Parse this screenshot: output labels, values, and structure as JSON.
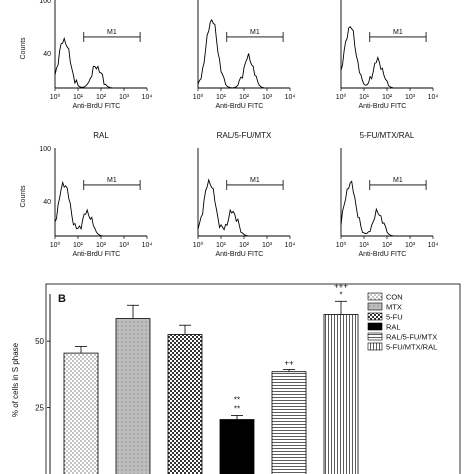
{
  "chart_data": [
    {
      "type": "histogram",
      "panel": "A",
      "title": "",
      "xlabel": "Anti-BrdU FITC",
      "ylabel": "Counts",
      "x_scale": "log",
      "x_ticks": [
        "10⁰",
        "10¹",
        "10²",
        "10³",
        "10⁴"
      ],
      "y_ticks": [
        "100",
        "40"
      ],
      "marker": "M1",
      "histograms": [
        {
          "title": "",
          "peak_x": 0.4,
          "shoulder_x": 1.8,
          "peak_height": 0.55
        },
        {
          "title": "",
          "peak_x": 0.6,
          "shoulder_x": 2.2,
          "peak_height": 0.78
        },
        {
          "title": "",
          "peak_x": 0.4,
          "shoulder_x": 1.6,
          "peak_height": 0.7
        },
        {
          "title": "RAL",
          "peak_x": 0.4,
          "shoulder_x": 1.4,
          "peak_height": 0.6
        },
        {
          "title": "RAL/5-FU/MTX",
          "peak_x": 0.5,
          "shoulder_x": 1.5,
          "peak_height": 0.62
        },
        {
          "title": "5-FU/MTX/RAL",
          "peak_x": 0.4,
          "shoulder_x": 1.6,
          "peak_height": 0.6
        }
      ]
    },
    {
      "type": "bar",
      "panel": "B",
      "panel_label": "B",
      "title": "",
      "xlabel": "",
      "ylabel": "% of cells in S phase",
      "y_ticks": [
        25,
        50
      ],
      "ylim": [
        0,
        70
      ],
      "categories": [
        "CON",
        "MTX",
        "5-FU",
        "RAL",
        "RAL/5-FU/MTX",
        "5-FU/MTX/RAL"
      ],
      "values": [
        45.5,
        58.5,
        52.5,
        20.5,
        38.5,
        60.0
      ],
      "errors": [
        2.5,
        5.0,
        3.5,
        1.5,
        0.8,
        5.0
      ],
      "annotations": [
        "",
        "",
        "",
        "**\n**",
        "++",
        "+++\n*"
      ],
      "legend": {
        "position": "top-right",
        "entries": [
          "CON",
          "MTX",
          "5-FU",
          "RAL",
          "RAL/5-FU/MTX",
          "5-FU/MTX/RAL"
        ]
      }
    }
  ]
}
